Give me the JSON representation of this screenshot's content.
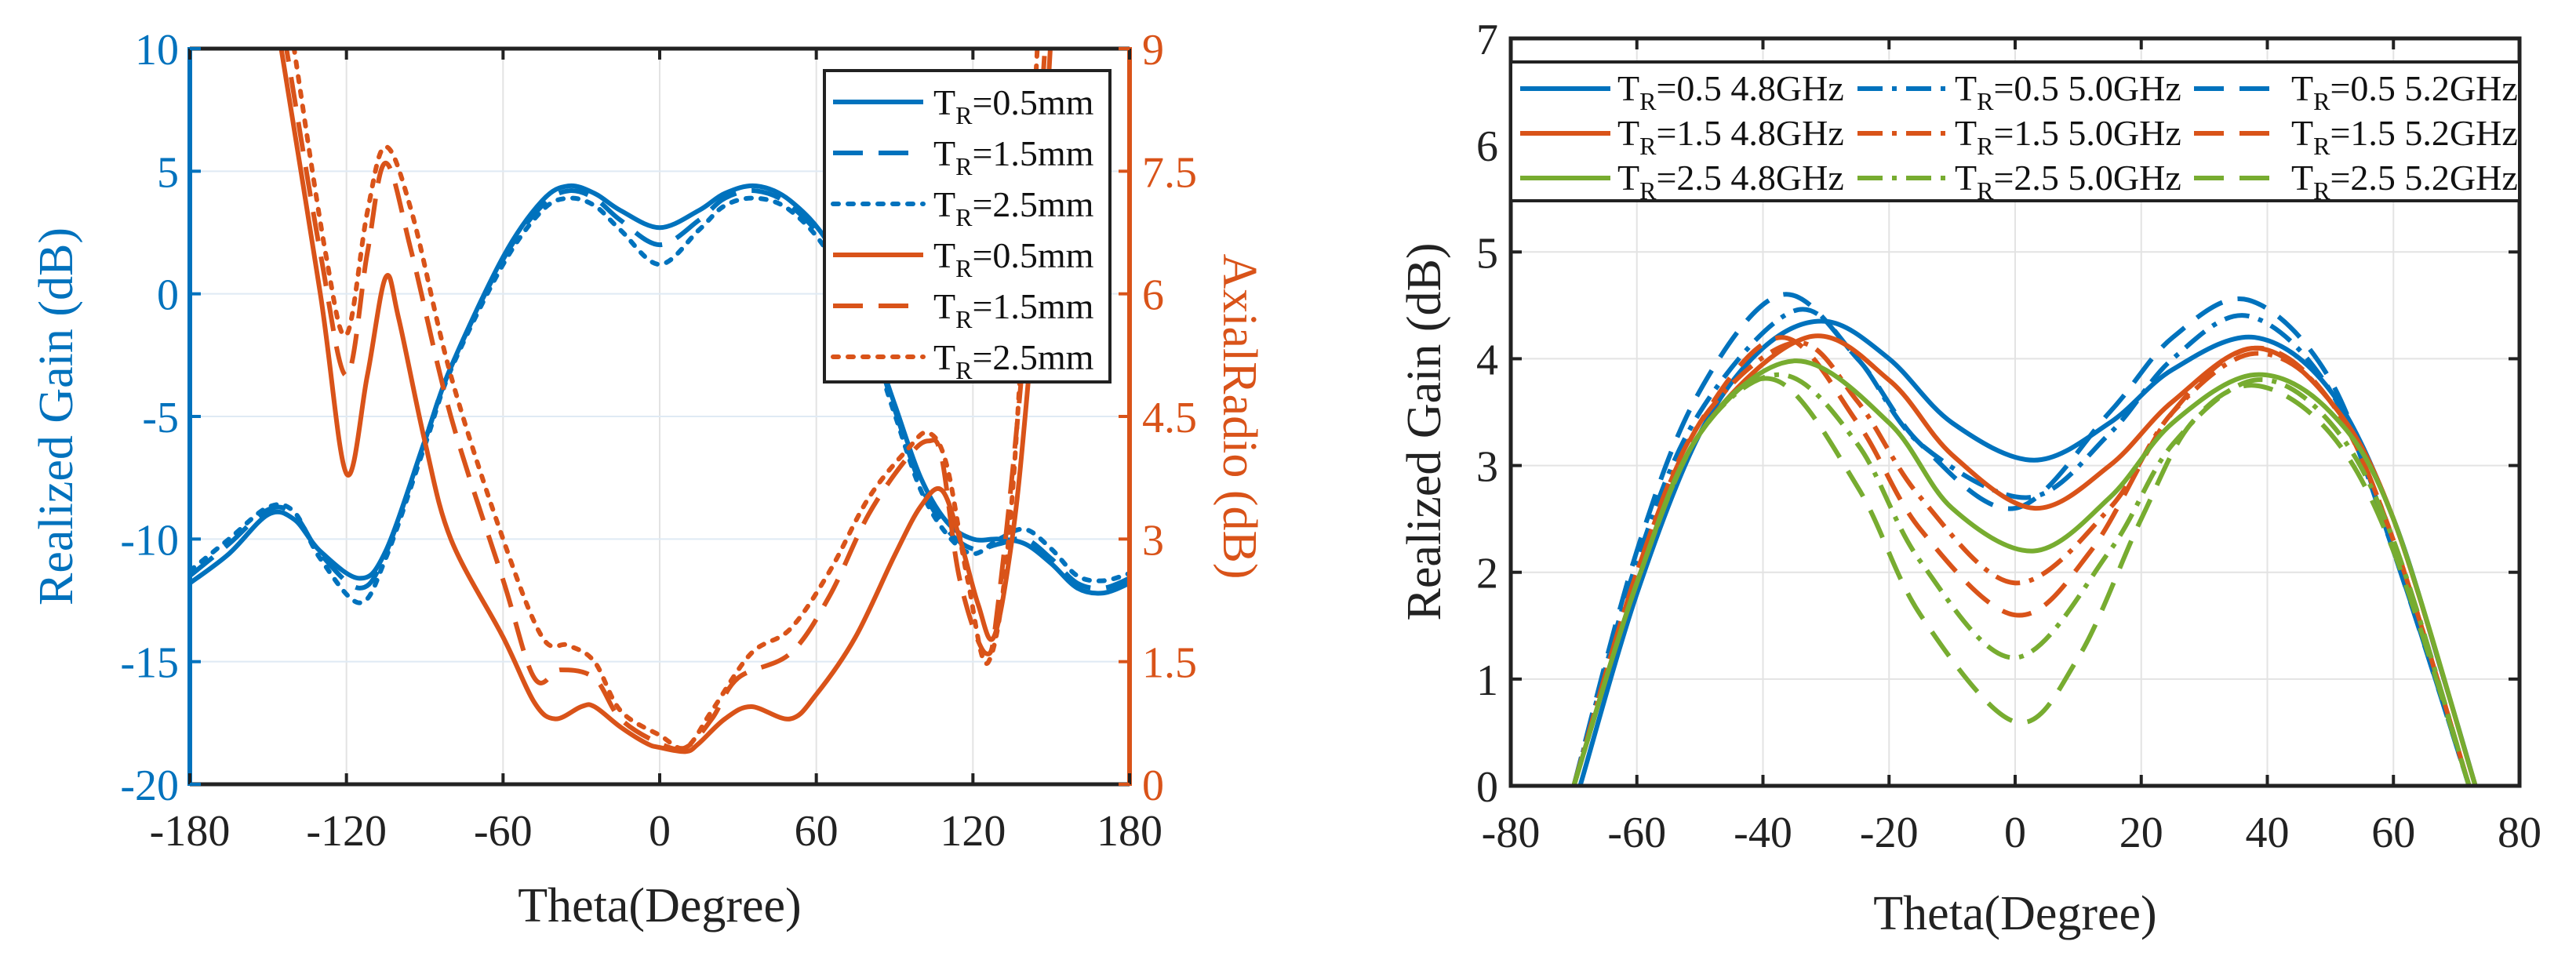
{
  "colors": {
    "blue": "#0072BD",
    "orange": "#D95319",
    "green": "#77AC30"
  },
  "chart_data": [
    {
      "type": "line",
      "title": "",
      "xlabel": "Theta(Degree)",
      "ylabel": "Realized Gain (dB)",
      "ylabel_right": "AxialRadio (dB)",
      "xlim": [
        -180,
        180
      ],
      "ylim": [
        -20,
        10
      ],
      "ylim_right": [
        0,
        9
      ],
      "xticks": [
        "-180",
        "-120",
        "-60",
        "0",
        "60",
        "120",
        "180"
      ],
      "xtick_values": [
        -180,
        -120,
        -60,
        0,
        60,
        120,
        180
      ],
      "yticks": [
        "-20",
        "-15",
        "-10",
        "-5",
        "0",
        "5",
        "10"
      ],
      "ytick_values": [
        -20,
        -15,
        -10,
        -5,
        0,
        5,
        10
      ],
      "yticks_right": [
        "0",
        "1.5",
        "3",
        "4.5",
        "6",
        "7.5",
        "9"
      ],
      "ytick_values_right": [
        0,
        1.5,
        3,
        4.5,
        6,
        7.5,
        9
      ],
      "grid": true,
      "legend_position": "top-right",
      "series": [
        {
          "name": "T_R=0.5mm",
          "legend": {
            "sym": "T",
            "sub": "R",
            "text": "=0.5mm"
          },
          "axis": "left",
          "color": "#0072BD",
          "style": "solid",
          "x": [
            -180,
            -165,
            -150,
            -140,
            -130,
            -115,
            -105,
            -90,
            -80,
            -60,
            -45,
            -35,
            -25,
            -15,
            0,
            15,
            25,
            37,
            50,
            65,
            80,
            90,
            100,
            110,
            120,
            130,
            140,
            150,
            160,
            170,
            180
          ],
          "y": [
            -11.8,
            -10.6,
            -9.0,
            -9.2,
            -10.5,
            -11.6,
            -10.5,
            -6,
            -3,
            1.5,
            3.8,
            4.4,
            4.1,
            3.4,
            2.7,
            3.4,
            4.1,
            4.4,
            3.8,
            2,
            -1.5,
            -4.5,
            -7.5,
            -9.3,
            -10,
            -10,
            -10.2,
            -11,
            -12,
            -12.2,
            -11.8
          ]
        },
        {
          "name": "T_R=1.5mm",
          "legend": {
            "sym": "T",
            "sub": "R",
            "text": "=1.5mm"
          },
          "axis": "left",
          "color": "#0072BD",
          "style": "dashed",
          "x": [
            -180,
            -165,
            -150,
            -140,
            -130,
            -115,
            -105,
            -90,
            -80,
            -60,
            -45,
            -35,
            -25,
            -15,
            0,
            15,
            25,
            37,
            50,
            65,
            80,
            90,
            100,
            110,
            120,
            130,
            140,
            150,
            160,
            170,
            180
          ],
          "y": [
            -11.5,
            -10.2,
            -8.8,
            -9.0,
            -10.6,
            -12.0,
            -10.6,
            -6,
            -3,
            1.4,
            3.6,
            4.2,
            3.9,
            3.0,
            2.0,
            3.0,
            3.9,
            4.2,
            3.6,
            1.8,
            -1.6,
            -4.7,
            -7.8,
            -9.6,
            -10.4,
            -10.2,
            -10.0,
            -10.8,
            -11.8,
            -12.0,
            -11.6
          ]
        },
        {
          "name": "T_R=2.5mm",
          "legend": {
            "sym": "T",
            "sub": "R",
            "text": "=2.5mm"
          },
          "axis": "left",
          "color": "#0072BD",
          "style": "dotted",
          "x": [
            -180,
            -165,
            -150,
            -140,
            -130,
            -115,
            -105,
            -90,
            -80,
            -60,
            -45,
            -35,
            -25,
            -15,
            0,
            15,
            25,
            37,
            50,
            65,
            80,
            90,
            100,
            110,
            120,
            130,
            140,
            150,
            160,
            170,
            180
          ],
          "y": [
            -11.3,
            -10.0,
            -8.7,
            -8.9,
            -10.8,
            -12.6,
            -10.8,
            -6.2,
            -3.1,
            1.2,
            3.4,
            3.9,
            3.6,
            2.6,
            1.2,
            2.6,
            3.6,
            3.9,
            3.4,
            1.6,
            -1.8,
            -4.9,
            -8.0,
            -9.8,
            -10.6,
            -10.0,
            -9.6,
            -10.4,
            -11.5,
            -11.7,
            -11.4
          ]
        },
        {
          "name": "T_R=0.5mm",
          "legend": {
            "sym": "T",
            "sub": "R",
            "text": "=0.5mm"
          },
          "axis": "right",
          "color": "#D95319",
          "style": "solid",
          "x": [
            -146,
            -130,
            -120,
            -112,
            -105,
            -100,
            -90,
            -80,
            -60,
            -48,
            -40,
            -30,
            -25,
            -15,
            -5,
            0,
            10,
            15,
            25,
            35,
            50,
            60,
            75,
            90,
            100,
            108,
            115,
            122,
            128,
            135,
            140,
            145,
            150
          ],
          "y": [
            9.2,
            6,
            3.8,
            5,
            6.2,
            5.7,
            4.2,
            3,
            1.8,
            1.0,
            0.8,
            0.95,
            0.95,
            0.7,
            0.5,
            0.45,
            0.4,
            0.5,
            0.8,
            0.95,
            0.8,
            1.1,
            1.8,
            2.8,
            3.4,
            3.6,
            3.0,
            2.2,
            1.8,
            3,
            4.5,
            6.5,
            9.2
          ]
        },
        {
          "name": "T_R=1.5mm",
          "legend": {
            "sym": "T",
            "sub": "R",
            "text": "=1.5mm"
          },
          "axis": "right",
          "color": "#D95319",
          "style": "dashed",
          "x": [
            -144,
            -130,
            -120,
            -112,
            -105,
            -95,
            -80,
            -60,
            -48,
            -38,
            -25,
            -15,
            0,
            10,
            20,
            30,
            50,
            65,
            80,
            95,
            103,
            108,
            115,
            125,
            130,
            140,
            148
          ],
          "y": [
            9.2,
            6.5,
            5,
            6.5,
            7.6,
            6.5,
            4.5,
            2.5,
            1.3,
            1.4,
            1.3,
            0.8,
            0.5,
            0.45,
            0.8,
            1.3,
            1.6,
            2.3,
            3.3,
            4.0,
            4.2,
            4.0,
            2.5,
            1.6,
            2.3,
            5.5,
            9.2
          ]
        },
        {
          "name": "T_R=2.5mm",
          "legend": {
            "sym": "T",
            "sub": "R",
            "text": "=2.5mm"
          },
          "axis": "right",
          "color": "#D95319",
          "style": "dotted",
          "x": [
            -141,
            -128,
            -120,
            -112,
            -105,
            -95,
            -80,
            -60,
            -45,
            -35,
            -25,
            -15,
            0,
            10,
            20,
            35,
            50,
            65,
            80,
            95,
            103,
            110,
            118,
            126,
            135,
            145
          ],
          "y": [
            9.2,
            6.5,
            5.5,
            7,
            7.8,
            7,
            5,
            3,
            1.8,
            1.7,
            1.5,
            0.9,
            0.6,
            0.45,
            0.9,
            1.6,
            1.9,
            2.6,
            3.5,
            4.1,
            4.3,
            3.9,
            2.5,
            1.5,
            3.5,
            9.2
          ]
        }
      ]
    },
    {
      "type": "line",
      "title": "",
      "xlabel": "Theta(Degree)",
      "ylabel": "Realized Gain (dB)",
      "xlim": [
        -80,
        80
      ],
      "ylim": [
        0,
        7
      ],
      "xticks": [
        "-80",
        "-60",
        "-40",
        "-20",
        "0",
        "20",
        "40",
        "60",
        "80"
      ],
      "xtick_values": [
        -80,
        -60,
        -40,
        -20,
        0,
        20,
        40,
        60,
        80
      ],
      "yticks": [
        "0",
        "1",
        "2",
        "3",
        "4",
        "5",
        "6",
        "7"
      ],
      "ytick_values": [
        0,
        1,
        2,
        3,
        4,
        5,
        6,
        7
      ],
      "grid": true,
      "legend_position": "top",
      "series": [
        {
          "name": "T_R=0.5 4.8GHz",
          "legend": {
            "sym": "T",
            "sub": "R",
            "text": "=0.5 4.8GHz"
          },
          "color": "#0072BD",
          "style": "solid",
          "x": [
            -69,
            -60,
            -50,
            -40,
            -30,
            -20,
            -10,
            3,
            15,
            25,
            38,
            50,
            60,
            68,
            73
          ],
          "y": [
            0,
            1.8,
            3.3,
            4.1,
            4.35,
            4.0,
            3.4,
            3.05,
            3.4,
            3.9,
            4.2,
            3.7,
            2.5,
            1.0,
            0
          ]
        },
        {
          "name": "T_R=0.5 5.0GHz",
          "legend": {
            "sym": "T",
            "sub": "R",
            "text": "=0.5 5.0GHz"
          },
          "color": "#0072BD",
          "style": "dashdot",
          "x": [
            -70,
            -60,
            -50,
            -35,
            -25,
            -15,
            2,
            15,
            25,
            37,
            50,
            60,
            72
          ],
          "y": [
            0,
            2.1,
            3.5,
            4.45,
            4.0,
            3.2,
            2.7,
            3.3,
            4.0,
            4.4,
            3.7,
            2.2,
            0
          ]
        },
        {
          "name": "T_R=0.5 5.2GHz",
          "legend": {
            "sym": "T",
            "sub": "R",
            "text": "=0.5 5.2GHz"
          },
          "color": "#0072BD",
          "style": "dashed",
          "x": [
            -70,
            -60,
            -50,
            -37,
            -25,
            -15,
            0,
            15,
            25,
            37,
            50,
            60,
            72
          ],
          "y": [
            0,
            2.2,
            3.7,
            4.6,
            4.0,
            3.2,
            2.6,
            3.5,
            4.2,
            4.55,
            3.8,
            2.2,
            0
          ]
        },
        {
          "name": "T_R=1.5 4.8GHz",
          "legend": {
            "sym": "T",
            "sub": "R",
            "text": "=1.5 4.8GHz"
          },
          "color": "#D95319",
          "style": "solid",
          "x": [
            -70,
            -60,
            -50,
            -33,
            -20,
            -10,
            3,
            15,
            25,
            38,
            50,
            60,
            73
          ],
          "y": [
            0,
            1.9,
            3.3,
            4.2,
            3.8,
            3.1,
            2.6,
            3.0,
            3.6,
            4.1,
            3.6,
            2.5,
            0
          ]
        },
        {
          "name": "T_R=1.5 5.0GHz",
          "legend": {
            "sym": "T",
            "sub": "R",
            "text": "=1.5 5.0GHz"
          },
          "color": "#D95319",
          "style": "dashdot",
          "x": [
            -70,
            -60,
            -50,
            -35,
            -25,
            -15,
            0,
            15,
            25,
            38,
            50,
            60,
            72
          ],
          "y": [
            0,
            2.0,
            3.4,
            4.15,
            3.6,
            2.7,
            1.9,
            2.6,
            3.5,
            4.05,
            3.6,
            2.3,
            0
          ]
        },
        {
          "name": "T_R=1.5 5.2GHz",
          "legend": {
            "sym": "T",
            "sub": "R",
            "text": "=1.5 5.2GHz"
          },
          "color": "#D95319",
          "style": "dashed",
          "x": [
            -70,
            -60,
            -50,
            -37,
            -25,
            -15,
            0,
            12,
            25,
            38,
            50,
            60,
            72
          ],
          "y": [
            0,
            2.0,
            3.4,
            4.2,
            3.4,
            2.4,
            1.6,
            2.2,
            3.5,
            4.1,
            3.6,
            2.3,
            0
          ]
        },
        {
          "name": "T_R=2.5 4.8GHz",
          "legend": {
            "sym": "T",
            "sub": "R",
            "text": "=2.5 4.8GHz"
          },
          "color": "#77AC30",
          "style": "solid",
          "x": [
            -70,
            -60,
            -50,
            -35,
            -20,
            -10,
            3,
            15,
            25,
            38,
            50,
            60,
            73
          ],
          "y": [
            0,
            1.9,
            3.3,
            3.98,
            3.4,
            2.6,
            2.2,
            2.7,
            3.4,
            3.85,
            3.5,
            2.5,
            0
          ]
        },
        {
          "name": "T_R=2.5 5.0GHz",
          "legend": {
            "sym": "T",
            "sub": "R",
            "text": "=2.5 5.0GHz"
          },
          "color": "#77AC30",
          "style": "dashdot",
          "x": [
            -70,
            -60,
            -50,
            -37,
            -25,
            -15,
            0,
            15,
            25,
            38,
            50,
            60,
            72
          ],
          "y": [
            0,
            1.9,
            3.3,
            3.85,
            3.2,
            2.1,
            1.2,
            2.2,
            3.2,
            3.8,
            3.4,
            2.3,
            0
          ]
        },
        {
          "name": "T_R=2.5 5.2GHz",
          "legend": {
            "sym": "T",
            "sub": "R",
            "text": "=2.5 5.2GHz"
          },
          "color": "#77AC30",
          "style": "dashed",
          "x": [
            -70,
            -60,
            -50,
            -38,
            -25,
            -15,
            0,
            10,
            20,
            28,
            38,
            50,
            60,
            72
          ],
          "y": [
            0,
            1.9,
            3.3,
            3.8,
            2.8,
            1.6,
            0.6,
            1.2,
            2.5,
            3.4,
            3.75,
            3.3,
            2.2,
            0
          ]
        }
      ]
    }
  ]
}
